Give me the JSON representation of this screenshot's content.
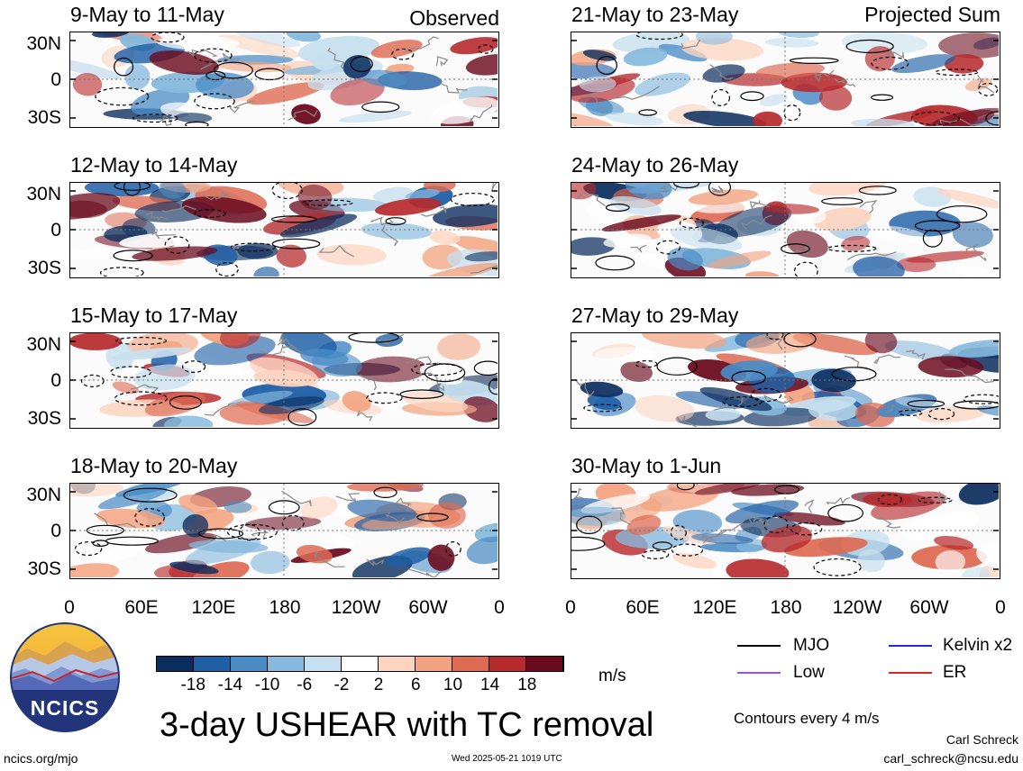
{
  "header": {
    "left_tag": "Observed",
    "right_tag": "Projected Sum"
  },
  "panels_left": [
    {
      "title": "9-May to 11-May"
    },
    {
      "title": "12-May to 14-May"
    },
    {
      "title": "15-May to 17-May"
    },
    {
      "title": "18-May to 20-May"
    }
  ],
  "panels_right": [
    {
      "title": "21-May to 23-May"
    },
    {
      "title": "24-May to 26-May"
    },
    {
      "title": "27-May to 29-May"
    },
    {
      "title": "30-May to 1-Jun"
    }
  ],
  "axes": {
    "lat_labels": [
      "30N",
      "0",
      "30S"
    ],
    "lon_labels": [
      "0",
      "60E",
      "120E",
      "180",
      "120W",
      "60W",
      "0"
    ]
  },
  "colorbar": {
    "labels": [
      "-18",
      "-14",
      "-10",
      "-6",
      "-2",
      "2",
      "6",
      "10",
      "14",
      "18"
    ],
    "colors": [
      "#0b2d5e",
      "#1f5fa6",
      "#4a8cc6",
      "#86b9dd",
      "#c7e0ef",
      "#ffffff",
      "#fcd5c1",
      "#f3a37f",
      "#de6a52",
      "#b72a2d",
      "#6b0a1e"
    ],
    "unit": "m/s"
  },
  "legend": {
    "items": [
      {
        "label": "MJO",
        "color": "#000000"
      },
      {
        "label": "Kelvin x2",
        "color": "#1f2bd6"
      },
      {
        "label": "Low",
        "color": "#a64fd6"
      },
      {
        "label": "ER",
        "color": "#d62a1f"
      }
    ],
    "contour_note": "Contours every 4 m/s"
  },
  "logo": {
    "text": "NCICS"
  },
  "main_title": "3-day USHEAR with TC removal",
  "footer": {
    "url": "ncics.org/mjo",
    "timestamp": "Wed 2025-05-21 1019 UTC",
    "author": "Carl Schreck",
    "email": "carl_schreck@ncsu.edu"
  }
}
